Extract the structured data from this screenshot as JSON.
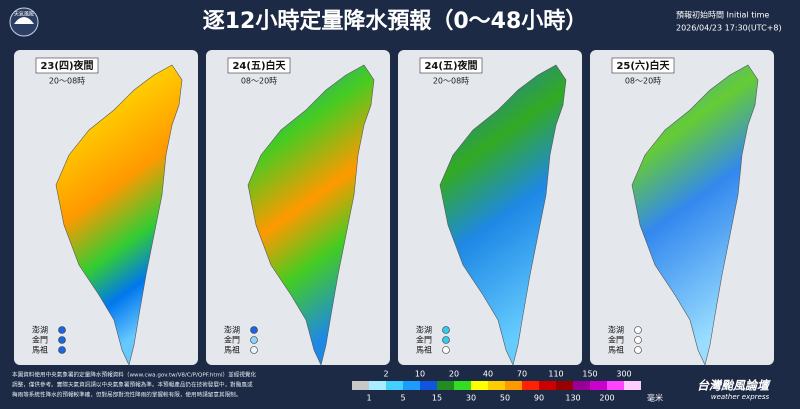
{
  "header": {
    "logo": "天氣風險",
    "title": "逐12小時定量降水預報（0～48小時）",
    "init_label": "預報初始時間 Initial time",
    "init_time": "2026/04/23  17:30(UTC+8)"
  },
  "panels": [
    {
      "day": "23(四)夜間",
      "hours": "20～08時",
      "islands": [
        "澎湖",
        "金門",
        "馬祖"
      ]
    },
    {
      "day": "24(五)白天",
      "hours": "08～20時",
      "islands": [
        "澎湖",
        "金門",
        "馬祖"
      ]
    },
    {
      "day": "24(五)夜間",
      "hours": "20～08時",
      "islands": [
        "澎湖",
        "金門",
        "馬祖"
      ]
    },
    {
      "day": "25(六)白天",
      "hours": "08～20時",
      "islands": [
        "澎湖",
        "金門",
        "馬祖"
      ]
    }
  ],
  "footer": {
    "note": [
      "本圖資料使用中央氣象署的定量降水預報資料（www.cwa.gov.tw/V8/C/P/QPF.html）並經視覺化",
      "調整，僅供參考。實際天氣資訊請以中央氣象署預報為準。本預報產品仍在技術發展中，對颱風或",
      "梅雨等系統性降水的預報較準確，但對局部對流性降雨的掌握較有限，使用時請留意其限制。"
    ]
  },
  "scale": {
    "upper_labels": [
      2,
      10,
      20,
      40,
      70,
      110,
      150,
      300
    ],
    "lower_labels": [
      1,
      5,
      15,
      30,
      50,
      90,
      130,
      200
    ],
    "unit": "毫米"
  },
  "brand": {
    "name": "台灣颱風論壇",
    "tagline": "weather express"
  }
}
